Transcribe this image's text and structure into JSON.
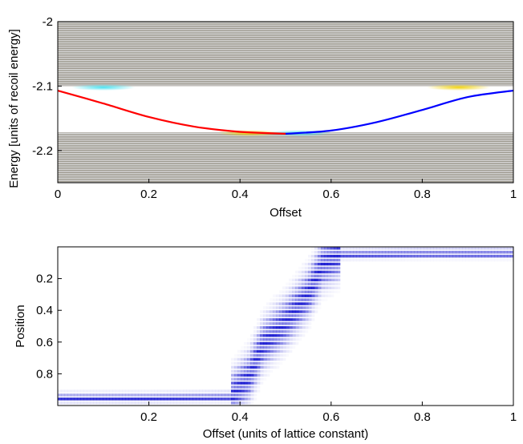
{
  "chart_data": [
    {
      "type": "line",
      "xlabel": "Offset",
      "ylabel": "Energy [units of recoil energy]",
      "xlim": [
        0,
        1
      ],
      "ylim": [
        -2.25,
        -2.0
      ],
      "y_reversed": false,
      "xticks": [
        "0",
        "0.2",
        "0.4",
        "0.6",
        "0.8",
        "1"
      ],
      "xtick_values": [
        0,
        0.2,
        0.4,
        0.6,
        0.8,
        1
      ],
      "yticks": [
        "-2",
        "-2.1",
        "-2.2"
      ],
      "ytick_values": [
        -2.0,
        -2.1,
        -2.2
      ],
      "bands": [
        {
          "name": "upper band",
          "from": -2.1,
          "to": -1.99,
          "line_count": 32
        },
        {
          "name": "lower band",
          "from": -2.255,
          "to": -2.172,
          "line_count": 24
        }
      ],
      "series": [
        {
          "color": "#ff0000",
          "x": [
            0,
            0.1,
            0.2,
            0.3,
            0.4,
            0.5
          ],
          "y": [
            -2.107,
            -2.127,
            -2.148,
            -2.163,
            -2.171,
            -2.174
          ]
        },
        {
          "color": "#0000ff",
          "x": [
            0.5,
            0.6,
            0.7,
            0.8,
            0.9,
            1.0
          ],
          "y": [
            -2.174,
            -2.169,
            -2.156,
            -2.137,
            -2.117,
            -2.107
          ]
        }
      ],
      "highlights": [
        {
          "color": "#40e0f0",
          "x": 0.1,
          "y": -2.102
        },
        {
          "color": "#f0d000",
          "x": 0.88,
          "y": -2.102
        },
        {
          "color": "#f0d000",
          "x": 0.42,
          "y": -2.173
        },
        {
          "color": "#40e0f0",
          "x": 0.53,
          "y": -2.173
        }
      ],
      "colors": {
        "band_background": "#9e9a90",
        "band_line": "#d8d8d8"
      }
    },
    {
      "type": "heatmap",
      "xlabel": "Offset (units of lattice constant)",
      "ylabel": "Position",
      "xlim": [
        0,
        1
      ],
      "ylim": [
        0,
        1
      ],
      "y_reversed": true,
      "xticks": [
        "0.2",
        "0.4",
        "0.6",
        "0.8",
        "1"
      ],
      "xtick_values": [
        0.2,
        0.4,
        0.6,
        0.8,
        1
      ],
      "yticks": [
        "0.2",
        "0.4",
        "0.6",
        "0.8"
      ],
      "ytick_values": [
        0.2,
        0.4,
        0.6,
        0.8
      ],
      "center_position": {
        "x": [
          0,
          0.2,
          0.38,
          0.42,
          0.45,
          0.5,
          0.55,
          0.58,
          0.62,
          0.8,
          1.0
        ],
        "y": [
          0.955,
          0.955,
          0.95,
          0.82,
          0.62,
          0.48,
          0.3,
          0.12,
          0.05,
          0.045,
          0.045
        ]
      },
      "colors": {
        "density": "#0000cc"
      }
    }
  ]
}
